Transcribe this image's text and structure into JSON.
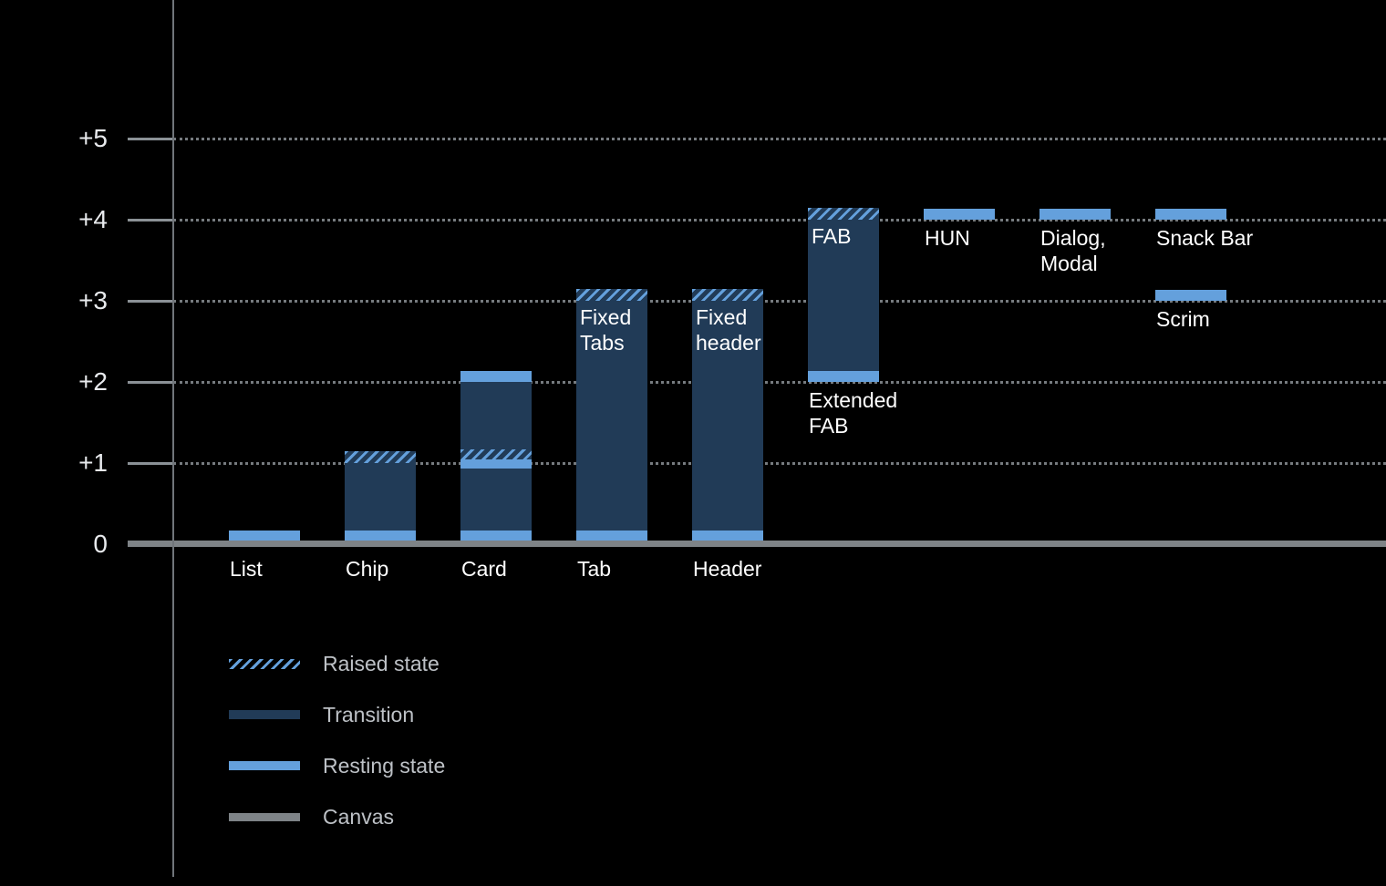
{
  "chart_data": {
    "type": "bar",
    "y_axis": {
      "ticks": [
        {
          "label": "+5",
          "value": 5
        },
        {
          "label": "+4",
          "value": 4
        },
        {
          "label": "+3",
          "value": 3
        },
        {
          "label": "+2",
          "value": 2
        },
        {
          "label": "+1",
          "value": 1
        },
        {
          "label": "0",
          "value": 0
        }
      ],
      "range": [
        0,
        5.6
      ],
      "grid": "dotted",
      "legend_position": "bottom-left"
    },
    "colors": {
      "background": "#000000",
      "resting": "#64A0DC",
      "transition": "#213B57",
      "canvas": "#7E8387",
      "grid": "#8B9196",
      "axis_text": "#E8EAED",
      "bar_label": "#FFFFFF",
      "legend_text": "#BDC1C6"
    },
    "legend": [
      {
        "label": "Raised state",
        "style": "raised"
      },
      {
        "label": "Transition",
        "style": "transition"
      },
      {
        "label": "Resting state",
        "style": "resting"
      },
      {
        "label": "Canvas",
        "style": "canvas"
      }
    ],
    "columns": [
      {
        "id": "list",
        "col": 0,
        "label_lines": [
          "List"
        ],
        "label_anchor": "below-baseline",
        "segments": [
          {
            "type": "resting",
            "from": 0.05,
            "to": 0.17
          }
        ]
      },
      {
        "id": "chip",
        "col": 1,
        "label_lines": [
          "Chip"
        ],
        "label_anchor": "below-baseline",
        "segments": [
          {
            "type": "resting",
            "from": 0.05,
            "to": 0.17
          },
          {
            "type": "transition",
            "from": 0.17,
            "to": 1.0
          },
          {
            "type": "raised",
            "from": 1.0,
            "to": 1.15
          }
        ]
      },
      {
        "id": "card",
        "col": 2,
        "label_lines": [
          "Card"
        ],
        "label_anchor": "below-baseline",
        "segments": [
          {
            "type": "resting",
            "from": 0.05,
            "to": 0.17
          },
          {
            "type": "transition",
            "from": 0.17,
            "to": 0.93
          },
          {
            "type": "resting",
            "from": 0.93,
            "to": 1.05
          },
          {
            "type": "raised",
            "from": 1.05,
            "to": 1.17
          },
          {
            "type": "transition",
            "from": 1.17,
            "to": 2.0
          },
          {
            "type": "resting",
            "from": 2.0,
            "to": 2.13
          }
        ]
      },
      {
        "id": "tab",
        "col": 3,
        "label_lines": [
          "Tab"
        ],
        "label_anchor": "below-baseline",
        "inner_label_lines": [
          "Fixed",
          "Tabs"
        ],
        "segments": [
          {
            "type": "resting",
            "from": 0.05,
            "to": 0.17
          },
          {
            "type": "transition",
            "from": 0.17,
            "to": 3.0
          },
          {
            "type": "raised",
            "from": 3.0,
            "to": 3.15
          }
        ]
      },
      {
        "id": "header",
        "col": 4,
        "label_lines": [
          "Header"
        ],
        "label_anchor": "below-baseline",
        "inner_label_lines": [
          "Fixed",
          "header"
        ],
        "segments": [
          {
            "type": "resting",
            "from": 0.05,
            "to": 0.17
          },
          {
            "type": "transition",
            "from": 0.17,
            "to": 3.0
          },
          {
            "type": "raised",
            "from": 3.0,
            "to": 3.15
          }
        ]
      },
      {
        "id": "extended-fab",
        "col": 5,
        "label_lines": [
          "Extended",
          "FAB"
        ],
        "label_anchor": "below-bar",
        "inner_label_lines": [
          "FAB"
        ],
        "segments": [
          {
            "type": "resting",
            "from": 2.0,
            "to": 2.13
          },
          {
            "type": "transition",
            "from": 2.13,
            "to": 4.0
          },
          {
            "type": "raised",
            "from": 4.0,
            "to": 4.15
          }
        ]
      },
      {
        "id": "hun",
        "col": 6,
        "label_lines": [
          "HUN"
        ],
        "label_anchor": "below-bar",
        "segments": [
          {
            "type": "resting",
            "from": 4.0,
            "to": 4.14
          }
        ]
      },
      {
        "id": "dialog-modal",
        "col": 7,
        "label_lines": [
          "Dialog,",
          "Modal"
        ],
        "label_anchor": "below-bar",
        "segments": [
          {
            "type": "resting",
            "from": 4.0,
            "to": 4.14
          }
        ]
      },
      {
        "id": "snack-bar",
        "col": 8,
        "label_lines": [
          "Snack Bar"
        ],
        "label_anchor": "below-bar",
        "segments": [
          {
            "type": "resting",
            "from": 4.0,
            "to": 4.14
          }
        ]
      },
      {
        "id": "scrim",
        "col": 8,
        "label_lines": [
          "Scrim"
        ],
        "label_anchor": "below-bar",
        "segments": [
          {
            "type": "resting",
            "from": 3.0,
            "to": 3.14
          }
        ]
      }
    ]
  }
}
